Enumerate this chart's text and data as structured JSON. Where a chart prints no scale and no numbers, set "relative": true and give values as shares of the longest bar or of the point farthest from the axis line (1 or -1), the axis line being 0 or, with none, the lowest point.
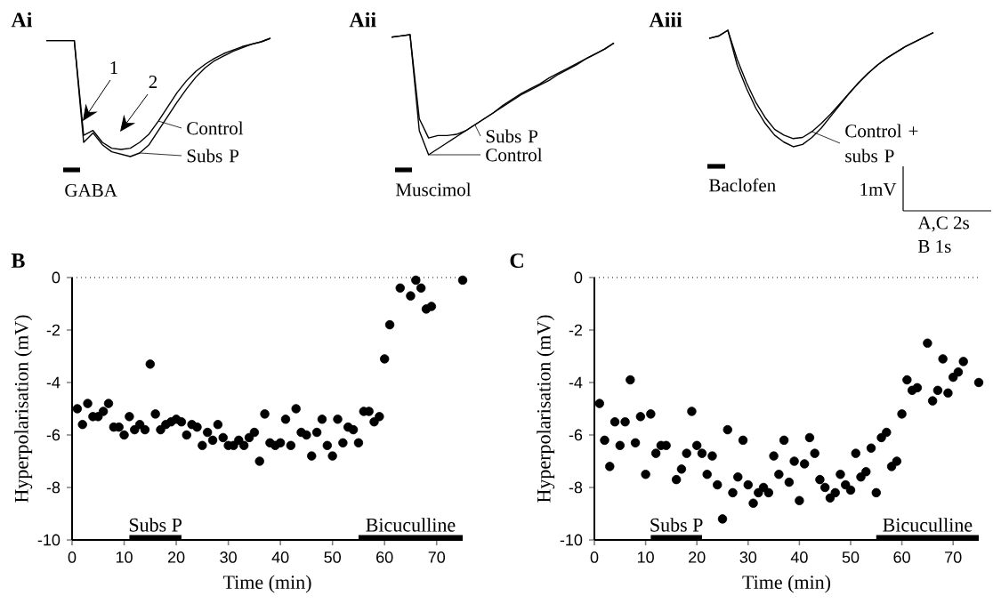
{
  "chart_data": [
    {
      "type": "line",
      "title": "Ai",
      "relative": true,
      "categories": [
        null,
        null,
        null,
        null,
        null,
        null,
        null,
        null,
        null,
        null,
        null,
        null,
        null,
        null,
        null,
        null,
        null,
        null,
        null,
        null,
        null,
        null,
        null,
        null,
        null
      ],
      "series": [
        {
          "name": "Control",
          "color": "#000000",
          "values": [
            0.98,
            0.98,
            0.98,
            0.98,
            0.18,
            0.22,
            0.12,
            0.07,
            0.06,
            0.07,
            0.12,
            0.19,
            0.3,
            0.42,
            0.54,
            0.64,
            0.72,
            0.78,
            0.83,
            0.87,
            0.9,
            0.93,
            0.95,
            0.97,
            1.0
          ]
        },
        {
          "name": "Subs P",
          "color": "#000000",
          "values": [
            0.98,
            0.98,
            0.98,
            0.98,
            0.12,
            0.2,
            0.1,
            0.04,
            0.02,
            0.0,
            0.03,
            0.1,
            0.22,
            0.34,
            0.46,
            0.57,
            0.67,
            0.75,
            0.81,
            0.85,
            0.89,
            0.92,
            0.95,
            0.97,
            1.0
          ]
        }
      ],
      "legend": "right",
      "annotations": [
        "1",
        "2",
        "GABA"
      ]
    },
    {
      "type": "line",
      "title": "Aii",
      "relative": true,
      "categories": [
        null,
        null,
        null,
        null,
        null,
        null,
        null,
        null,
        null,
        null,
        null,
        null,
        null,
        null,
        null,
        null,
        null,
        null,
        null,
        null,
        null,
        null,
        null,
        null,
        null
      ],
      "series": [
        {
          "name": "Control",
          "color": "#000000",
          "values": [
            0.98,
            0.99,
            1.0,
            0.2,
            0.0,
            0.05,
            0.1,
            0.15,
            0.2,
            0.25,
            0.3,
            0.35,
            0.4,
            0.45,
            0.5,
            0.54,
            0.58,
            0.62,
            0.67,
            0.71,
            0.75,
            0.8,
            0.84,
            0.88,
            0.93
          ]
        },
        {
          "name": "Subs P",
          "color": "#000000",
          "values": [
            0.98,
            0.99,
            1.0,
            0.3,
            0.14,
            0.16,
            0.16,
            0.17,
            0.2,
            0.25,
            0.3,
            0.35,
            0.41,
            0.46,
            0.51,
            0.55,
            0.59,
            0.64,
            0.68,
            0.72,
            0.76,
            0.8,
            0.84,
            0.88,
            0.93
          ]
        }
      ],
      "legend": "bottom",
      "annotations": [
        "Muscimol"
      ]
    },
    {
      "type": "line",
      "title": "Aiii",
      "relative": true,
      "categories": [
        null,
        null,
        null,
        null,
        null,
        null,
        null,
        null,
        null,
        null,
        null,
        null,
        null,
        null,
        null,
        null,
        null,
        null,
        null,
        null,
        null,
        null,
        null,
        null,
        null
      ],
      "series": [
        {
          "name": "Control + subs P",
          "color": "#000000",
          "values": [
            0.93,
            0.95,
            1.0,
            0.75,
            0.55,
            0.38,
            0.25,
            0.15,
            0.1,
            0.07,
            0.08,
            0.13,
            0.2,
            0.28,
            0.37,
            0.46,
            0.55,
            0.63,
            0.7,
            0.76,
            0.81,
            0.86,
            0.9,
            0.94,
            0.98
          ]
        },
        {
          "color": "#000000",
          "values": [
            0.93,
            0.95,
            1.0,
            0.7,
            0.5,
            0.33,
            0.2,
            0.1,
            0.04,
            0.0,
            0.02,
            0.08,
            0.16,
            0.26,
            0.36,
            0.46,
            0.55,
            0.63,
            0.7,
            0.76,
            0.81,
            0.86,
            0.9,
            0.94,
            0.98
          ]
        }
      ],
      "legend": "bottom right",
      "annotations": [
        "Baclofen",
        "1mV",
        "A,C 2s",
        "B 1s"
      ]
    },
    {
      "type": "scatter",
      "title": "B",
      "xlabel": "Time (min)",
      "ylabel": "Hyperpolarisation (mV)",
      "series": [
        {
          "type": "line",
          "name": "Subs P",
          "color": "#000000",
          "x": [
            11,
            21
          ],
          "values": [
            -9.9,
            -9.9
          ]
        },
        {
          "type": "line",
          "name": "Bicuculline",
          "color": "#000000",
          "x": [
            55,
            75
          ],
          "values": [
            -9.9,
            -9.9
          ]
        },
        {
          "color": "#000000",
          "marker": "circle",
          "x": [
            1,
            2,
            3,
            4,
            5,
            6,
            7,
            8,
            9,
            10,
            11,
            12,
            13,
            14,
            15,
            16,
            17,
            18,
            19,
            20,
            21,
            22,
            23,
            24,
            25,
            26,
            27,
            28,
            29,
            30,
            31,
            32,
            33,
            34,
            35,
            36,
            37,
            38,
            39,
            40,
            41,
            42,
            43,
            44,
            45,
            46,
            47,
            48,
            49,
            50,
            51,
            52,
            53,
            54,
            55,
            56,
            57,
            58,
            59,
            60,
            61,
            63,
            65,
            66,
            67,
            68,
            69,
            75
          ],
          "values": [
            -5.0,
            -5.6,
            -4.8,
            -5.3,
            -5.3,
            -5.1,
            -4.8,
            -5.7,
            -5.7,
            -6.0,
            -5.3,
            -5.8,
            -5.6,
            -5.8,
            -3.3,
            -5.2,
            -5.8,
            -5.6,
            -5.5,
            -5.4,
            -5.5,
            -6.0,
            -5.6,
            -5.7,
            -6.4,
            -5.9,
            -6.2,
            -5.6,
            -6.1,
            -6.4,
            -6.4,
            -6.2,
            -6.4,
            -6.1,
            -5.9,
            -7.0,
            -5.2,
            -6.3,
            -6.4,
            -6.3,
            -5.4,
            -6.4,
            -5.0,
            -5.9,
            -6.0,
            -6.8,
            -5.9,
            -5.4,
            -6.4,
            -6.8,
            -5.4,
            -6.3,
            -5.7,
            -5.8,
            -6.3,
            -5.1,
            -5.1,
            -5.5,
            -5.3,
            -3.1,
            -1.8,
            -0.4,
            -0.7,
            -0.1,
            -0.4,
            -1.2,
            -1.1,
            -0.1
          ]
        }
      ],
      "xlim": [
        0,
        75
      ],
      "ylim": [
        -10,
        0
      ],
      "xticks": [
        0,
        10,
        20,
        30,
        40,
        50,
        60,
        70
      ],
      "yticks": [
        0,
        -2,
        -4,
        -6,
        -8,
        -10
      ],
      "ref_lines": [
        {
          "axis": "y",
          "value": 0,
          "line_style": "dotted"
        }
      ]
    },
    {
      "type": "scatter",
      "title": "C",
      "xlabel": "Time (min)",
      "ylabel": "Hyperpolarisation (mV)",
      "series": [
        {
          "type": "line",
          "name": "Subs P",
          "color": "#000000",
          "x": [
            11,
            21
          ],
          "values": [
            -9.9,
            -9.9
          ]
        },
        {
          "type": "line",
          "name": "Bicuculline",
          "color": "#000000",
          "x": [
            55,
            75
          ],
          "values": [
            -9.9,
            -9.9
          ]
        },
        {
          "color": "#000000",
          "marker": "circle",
          "x": [
            1,
            2,
            3,
            4,
            5,
            6,
            7,
            8,
            9,
            10,
            11,
            12,
            13,
            14,
            16,
            17,
            18,
            19,
            20,
            21,
            22,
            23,
            24,
            25,
            26,
            27,
            28,
            29,
            30,
            31,
            32,
            33,
            34,
            35,
            36,
            37,
            38,
            39,
            40,
            41,
            42,
            43,
            44,
            45,
            46,
            47,
            48,
            49,
            50,
            51,
            52,
            53,
            54,
            55,
            56,
            57,
            58,
            59,
            60,
            61,
            62,
            63,
            65,
            66,
            67,
            68,
            69,
            70,
            71,
            72,
            75
          ],
          "values": [
            -4.8,
            -6.2,
            -7.2,
            -5.5,
            -6.4,
            -5.5,
            -3.9,
            -6.3,
            -5.3,
            -7.5,
            -5.2,
            -6.7,
            -6.4,
            -6.4,
            -7.7,
            -7.3,
            -6.7,
            -5.1,
            -6.4,
            -6.7,
            -7.5,
            -6.8,
            -7.9,
            -9.2,
            -5.8,
            -8.2,
            -7.6,
            -6.2,
            -7.9,
            -8.6,
            -8.2,
            -8.0,
            -8.2,
            -6.8,
            -7.5,
            -6.2,
            -7.8,
            -7.0,
            -8.5,
            -7.1,
            -6.1,
            -6.7,
            -7.7,
            -8.0,
            -8.4,
            -8.2,
            -7.5,
            -7.9,
            -8.1,
            -6.7,
            -7.6,
            -7.4,
            -6.5,
            -8.2,
            -6.1,
            -5.9,
            -7.2,
            -7.0,
            -5.2,
            -3.9,
            -4.3,
            -4.2,
            -2.5,
            -4.7,
            -4.3,
            -3.1,
            -4.4,
            -3.8,
            -3.6,
            -3.2,
            -4.0
          ]
        }
      ],
      "xlim": [
        0,
        75
      ],
      "ylim": [
        -10,
        0
      ],
      "xticks": [
        0,
        10,
        20,
        30,
        40,
        50,
        60,
        70
      ],
      "yticks": [
        0,
        -2,
        -4,
        -6,
        -8,
        -10
      ],
      "ref_lines": [
        {
          "axis": "y",
          "value": 0,
          "line_style": "dotted"
        }
      ]
    }
  ]
}
